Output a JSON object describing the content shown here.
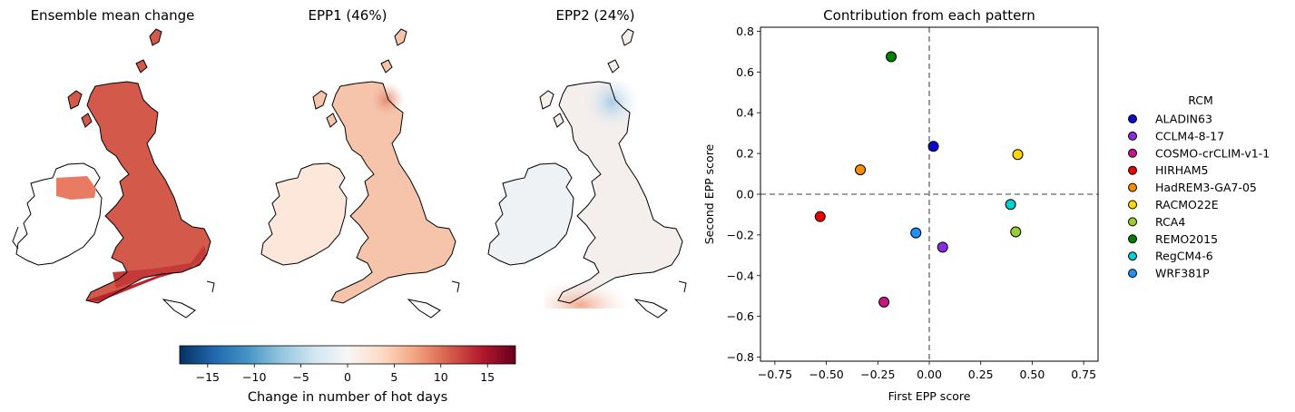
{
  "maps": [
    {
      "title": "Ensemble mean change"
    },
    {
      "title": "EPP1 (46%)"
    },
    {
      "title": "EPP2 (24%)"
    }
  ],
  "colorbar": {
    "label": "Change in number of hot days",
    "ticks": [
      "−15",
      "−10",
      "−5",
      "0",
      "5",
      "10",
      "15"
    ],
    "range": [
      -18,
      18
    ],
    "colormap": "RdBu_r"
  },
  "chart_data": {
    "type": "scatter",
    "title": "Contribution from each pattern",
    "xlabel": "First EPP score",
    "ylabel": "Second EPP score",
    "xlim": [
      -0.82,
      0.82
    ],
    "ylim": [
      -0.82,
      0.82
    ],
    "xticks": [
      "−0.75",
      "−0.50",
      "−0.25",
      "0.00",
      "0.25",
      "0.50",
      "0.75"
    ],
    "yticks": [
      "−0.8",
      "−0.6",
      "−0.4",
      "−0.2",
      "0.0",
      "0.2",
      "0.4",
      "0.6",
      "0.8"
    ],
    "grid": false,
    "reference_lines": {
      "x": 0,
      "y": 0,
      "style": "dashed"
    },
    "legend_title": "RCM",
    "legend_position": "outside-right",
    "points": [
      {
        "name": "ALADIN63",
        "x": 0.02,
        "y": 0.235,
        "color": "#0a0ac8"
      },
      {
        "name": "CCLM4-8-17",
        "x": 0.065,
        "y": -0.26,
        "color": "#8a2be2"
      },
      {
        "name": "COSMO-crCLIM-v1-1",
        "x": -0.22,
        "y": -0.53,
        "color": "#c71585"
      },
      {
        "name": "HIRHAM5",
        "x": -0.53,
        "y": -0.11,
        "color": "#ee0000"
      },
      {
        "name": "HadREM3-GA7-05",
        "x": -0.335,
        "y": 0.12,
        "color": "#ff8c00"
      },
      {
        "name": "RACMO22E",
        "x": 0.43,
        "y": 0.195,
        "color": "#ffd700"
      },
      {
        "name": "RCA4",
        "x": 0.42,
        "y": -0.185,
        "color": "#9acd32"
      },
      {
        "name": "REMO2015",
        "x": -0.185,
        "y": 0.675,
        "color": "#008000"
      },
      {
        "name": "RegCM4-6",
        "x": 0.395,
        "y": -0.05,
        "color": "#00ced1"
      },
      {
        "name": "WRF381P",
        "x": -0.065,
        "y": -0.19,
        "color": "#1e90ff"
      }
    ]
  }
}
